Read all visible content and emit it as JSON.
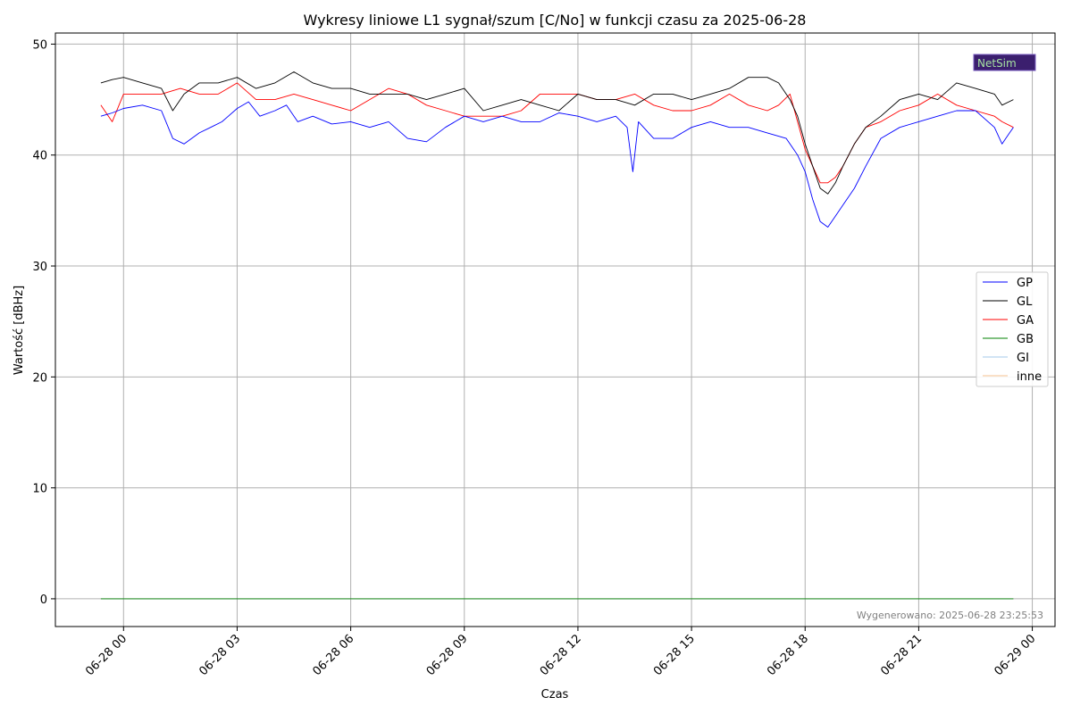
{
  "chart_data": {
    "type": "line",
    "title": "Wykresy liniowe L1 sygnał/szum [C/No] w funkcji czasu za 2025-06-28",
    "xlabel": "Czas",
    "ylabel": "Wartość [dBHz]",
    "x_axis": "time (hours from 2025-06-28 00:00)",
    "xlim": [
      -1.8,
      24.6
    ],
    "ylim": [
      -2.5,
      51
    ],
    "x_ticks": [
      0,
      3,
      6,
      9,
      12,
      15,
      18,
      21,
      24
    ],
    "x_tick_labels": [
      "06-28 00",
      "06-28 03",
      "06-28 06",
      "06-28 09",
      "06-28 12",
      "06-28 15",
      "06-28 18",
      "06-28 21",
      "06-29 00"
    ],
    "y_ticks": [
      0,
      10,
      20,
      30,
      40,
      50
    ],
    "y_tick_labels": [
      "0",
      "10",
      "20",
      "30",
      "40",
      "50"
    ],
    "grid": true,
    "legend_position": "right",
    "series": [
      {
        "name": "GP",
        "color": "#0000ff",
        "x": [
          -0.6,
          -0.3,
          0,
          0.5,
          1,
          1.3,
          1.6,
          2,
          2.3,
          2.6,
          3,
          3.3,
          3.6,
          4,
          4.3,
          4.6,
          5,
          5.5,
          6,
          6.5,
          7,
          7.5,
          8,
          8.5,
          9,
          9.5,
          10,
          10.5,
          11,
          11.5,
          12,
          12.5,
          13,
          13.3,
          13.45,
          13.6,
          14,
          14.5,
          15,
          15.5,
          16,
          16.5,
          17,
          17.5,
          17.8,
          18,
          18.2,
          18.4,
          18.6,
          18.8,
          19,
          19.3,
          19.6,
          20,
          20.5,
          21,
          21.5,
          22,
          22.5,
          23,
          23.2,
          23.4,
          23.5
        ],
        "values": [
          43.5,
          43.8,
          44.2,
          44.5,
          44.0,
          41.5,
          41.0,
          42.0,
          42.5,
          43.0,
          44.2,
          44.8,
          43.5,
          44.0,
          44.5,
          43.0,
          43.5,
          42.8,
          43.0,
          42.5,
          43.0,
          41.5,
          41.2,
          42.5,
          43.5,
          43.0,
          43.5,
          43.0,
          43.0,
          43.8,
          43.5,
          43.0,
          43.5,
          42.5,
          38.5,
          43.0,
          41.5,
          41.5,
          42.5,
          43.0,
          42.5,
          42.5,
          42.0,
          41.5,
          40.0,
          38.5,
          36.0,
          34.0,
          33.5,
          34.5,
          35.5,
          37.0,
          39.0,
          41.5,
          42.5,
          43.0,
          43.5,
          44.0,
          44.0,
          42.5,
          41.0,
          42.0,
          42.5
        ]
      },
      {
        "name": "GL",
        "color": "#000000",
        "x": [
          -0.6,
          -0.3,
          0,
          0.5,
          1,
          1.3,
          1.6,
          2,
          2.5,
          3,
          3.5,
          4,
          4.5,
          5,
          5.5,
          6,
          6.5,
          7,
          7.5,
          8,
          8.5,
          9,
          9.5,
          10,
          10.5,
          11,
          11.5,
          12,
          12.5,
          13,
          13.5,
          14,
          14.5,
          15,
          15.5,
          16,
          16.5,
          17,
          17.3,
          17.6,
          17.8,
          18,
          18.2,
          18.4,
          18.6,
          18.8,
          19,
          19.3,
          19.6,
          20,
          20.5,
          21,
          21.5,
          22,
          22.5,
          23,
          23.2,
          23.5
        ],
        "values": [
          46.5,
          46.8,
          47.0,
          46.5,
          46.0,
          44.0,
          45.5,
          46.5,
          46.5,
          47.0,
          46.0,
          46.5,
          47.5,
          46.5,
          46.0,
          46.0,
          45.5,
          45.5,
          45.5,
          45.0,
          45.5,
          46.0,
          44.0,
          44.5,
          45.0,
          44.5,
          44.0,
          45.5,
          45.0,
          45.0,
          44.5,
          45.5,
          45.5,
          45.0,
          45.5,
          46.0,
          47.0,
          47.0,
          46.5,
          45.0,
          43.5,
          41.0,
          39.0,
          37.0,
          36.5,
          37.5,
          39.0,
          41.0,
          42.5,
          43.5,
          45.0,
          45.5,
          45.0,
          46.5,
          46.0,
          45.5,
          44.5,
          45.0
        ]
      },
      {
        "name": "GA",
        "color": "#ff0000",
        "x": [
          -0.6,
          -0.3,
          0,
          0.5,
          1,
          1.5,
          2,
          2.5,
          3,
          3.5,
          4,
          4.5,
          5,
          5.5,
          6,
          6.5,
          7,
          7.5,
          8,
          8.5,
          9,
          9.5,
          10,
          10.5,
          11,
          11.5,
          12,
          12.5,
          13,
          13.5,
          14,
          14.5,
          15,
          15.5,
          16,
          16.5,
          17,
          17.3,
          17.6,
          17.8,
          18,
          18.2,
          18.4,
          18.6,
          18.8,
          19,
          19.3,
          19.6,
          20,
          20.5,
          21,
          21.5,
          22,
          22.5,
          23,
          23.2,
          23.5
        ],
        "values": [
          44.5,
          43.0,
          45.5,
          45.5,
          45.5,
          46.0,
          45.5,
          45.5,
          46.5,
          45.0,
          45.0,
          45.5,
          45.0,
          44.5,
          44.0,
          45.0,
          46.0,
          45.5,
          44.5,
          44.0,
          43.5,
          43.5,
          43.5,
          44.0,
          45.5,
          45.5,
          45.5,
          45.0,
          45.0,
          45.5,
          44.5,
          44.0,
          44.0,
          44.5,
          45.5,
          44.5,
          44.0,
          44.5,
          45.5,
          43.0,
          40.5,
          39.0,
          37.5,
          37.5,
          38.0,
          39.0,
          41.0,
          42.5,
          43.0,
          44.0,
          44.5,
          45.5,
          44.5,
          44.0,
          43.5,
          43.0,
          42.5
        ]
      },
      {
        "name": "GB",
        "color": "#008000",
        "x": [
          -0.6,
          23.5
        ],
        "values": [
          0,
          0
        ]
      },
      {
        "name": "GI",
        "color": "#a6c8e8",
        "x": [
          -0.6,
          23.5
        ],
        "values": [
          0,
          0
        ]
      },
      {
        "name": "inne",
        "color": "#f5c28f",
        "x": [
          -0.6,
          23.5
        ],
        "values": [
          0,
          0
        ]
      }
    ],
    "footer": "Wygenerowano: 2025-06-28 23:25:53",
    "logo_text": "NetSim"
  }
}
